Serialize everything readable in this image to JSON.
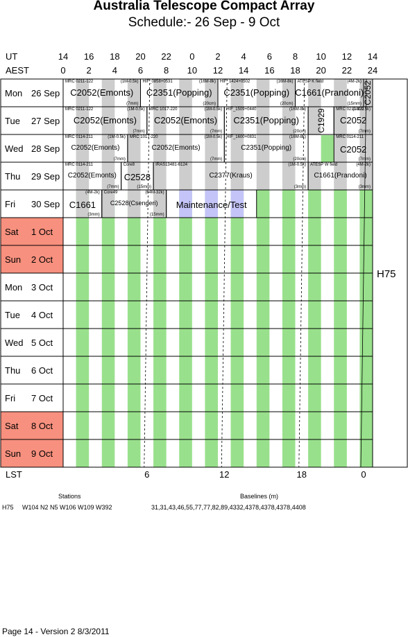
{
  "title": "Australia Telescope Compact Array",
  "subtitle": "Schedule:- 26 Sep - 9  Oct",
  "ut_label": "UT",
  "aest_label": "AEST",
  "lst_label": "LST",
  "ut_ticks": [
    "14",
    "16",
    "18",
    "20",
    "22",
    "0",
    "2",
    "4",
    "6",
    "8",
    "10",
    "12",
    "14"
  ],
  "aest_ticks": [
    "0",
    "2",
    "4",
    "6",
    "8",
    "10",
    "12",
    "14",
    "16",
    "18",
    "20",
    "22",
    "24"
  ],
  "lst_ticks": [
    "6",
    "12",
    "18",
    "0"
  ],
  "days": [
    {
      "dow": "Mon",
      "date": "26 Sep",
      "weekend": false
    },
    {
      "dow": "Tue",
      "date": "27 Sep",
      "weekend": false
    },
    {
      "dow": "Wed",
      "date": "28 Sep",
      "weekend": false
    },
    {
      "dow": "Thu",
      "date": "29 Sep",
      "weekend": false
    },
    {
      "dow": "Fri",
      "date": "30 Sep",
      "weekend": false
    },
    {
      "dow": "Sat",
      "date": "1  Oct",
      "weekend": true
    },
    {
      "dow": "Sun",
      "date": "2  Oct",
      "weekend": true
    },
    {
      "dow": "Mon",
      "date": "3  Oct",
      "weekend": false
    },
    {
      "dow": "Tue",
      "date": "4  Oct",
      "weekend": false
    },
    {
      "dow": "Wed",
      "date": "5  Oct",
      "weekend": false
    },
    {
      "dow": "Thu",
      "date": "6  Oct",
      "weekend": false
    },
    {
      "dow": "Fri",
      "date": "7  Oct",
      "weekend": false
    },
    {
      "dow": "Sat",
      "date": "8  Oct",
      "weekend": true
    },
    {
      "dow": "Sun",
      "date": "9  Oct",
      "weekend": true
    }
  ],
  "config": "H75",
  "rows": [
    [
      {
        "start": 0,
        "end": 6,
        "source": "MRC 0211-122",
        "band": "(1M-0.5k)",
        "proj": "C2052(Emonts)",
        "filter": "(7mm)"
      },
      {
        "start": 6,
        "end": 12,
        "source": "HIF_0858+0531",
        "band": "(16M-8k)",
        "proj": "C2351(Popping)",
        "filter": "(20cm)"
      },
      {
        "start": 12,
        "end": 18,
        "source": "HIF_1424+0502",
        "band": "(16M-8k)",
        "proj": "C2351(Popping)",
        "filter": "(20cm)"
      },
      {
        "start": 18,
        "end": 23.3,
        "source": "ATESP K field",
        "band": "(4M-2k)",
        "proj": "C1661(Prandoni)",
        "filter": "(15mm)"
      },
      {
        "start": 23.3,
        "end": 24,
        "vproj": "C2052"
      }
    ],
    [
      {
        "start": 0,
        "end": 6.5,
        "source": "MRC 0211-122",
        "band": "(1M-0.5k)",
        "proj": "C2052(Emonts)",
        "filter": "(7mm)"
      },
      {
        "start": 6.5,
        "end": 12.5,
        "source": "MRC 1017-220",
        "band": "(1M-0.5k)",
        "proj": "C2052(Emonts)",
        "filter": "(7mm)"
      },
      {
        "start": 12.5,
        "end": 19,
        "source": "HIF_1509+0440",
        "band": "(16M-8k)",
        "proj": "C2351(Popping)",
        "filter": "(20cm)"
      },
      {
        "start": 19,
        "end": 21,
        "vproj": "C1929"
      },
      {
        "start": 21,
        "end": 24,
        "source": "MRC 0211-122",
        "band": "(1M-0.5k)",
        "proj": "C2052",
        "filter": "(7mm)"
      }
    ],
    [
      {
        "start": 0,
        "end": 5,
        "source": "MRC 0114-211",
        "band": "(1M-0.5k)",
        "proj": "C2052(Emonts)",
        "filter": "(7mm)"
      },
      {
        "start": 5,
        "end": 12.5,
        "source": "MRC 1017-220",
        "band": "(1M-0.5k)",
        "proj": "C2052(Emonts)",
        "filter": "(7mm)"
      },
      {
        "start": 12.5,
        "end": 19,
        "source": "HIF_1600+0831",
        "band": "(16M-8k)",
        "proj": "C2351(Popping)",
        "filter": "(20cm)"
      },
      {
        "start": 21,
        "end": 24,
        "source": "MRC 0114-211",
        "proj": "C2052",
        "filter": "(7mm)"
      }
    ],
    [
      {
        "start": 0,
        "end": 4.5,
        "source": "MRC 0114-211",
        "proj": "C2052(Emonts)",
        "filter": "(7mm)"
      },
      {
        "start": 4.5,
        "end": 7,
        "source": "Core8",
        "proj": "C2528",
        "filter": "(15mm)"
      },
      {
        "start": 7,
        "end": 19,
        "source": "IRAS13481-6124",
        "band": "(1M-0.5k)",
        "proj": "C2377(Kraus)",
        "filter": "(3mm)"
      },
      {
        "start": 19,
        "end": 24,
        "source": "ATESP W field",
        "band": "(4M-2k)",
        "proj": "C1661(Prandoni)",
        "filter": "(3mm)"
      }
    ],
    [
      {
        "start": 0,
        "end": 3,
        "band": "(4M-2k)",
        "proj": "C1661",
        "filter": "(3mm)"
      },
      {
        "start": 3,
        "end": 8,
        "source": "Core49",
        "band": "(64M-32k)",
        "proj": "C2528(Csengeri)",
        "filter": "(15mm)"
      },
      {
        "start": 8,
        "end": 15,
        "proj": "Maintenance/Test"
      }
    ]
  ],
  "footer": {
    "stations_label": "Stations",
    "baselines_label": "Baselines (m)",
    "config": "H75",
    "stations": "W104 N2 N5 W106 W109 W392",
    "baselines": "31,31,43,46,55,77,77,82,89,4332,4378,4378,4378,4408",
    "page": "Page 14 - Version 2  8/3/2011"
  },
  "colors": {
    "green": "#99e08c",
    "blue": "#c4c4f8",
    "grey": "#cdcdcd",
    "weekend": "#f7907e"
  }
}
